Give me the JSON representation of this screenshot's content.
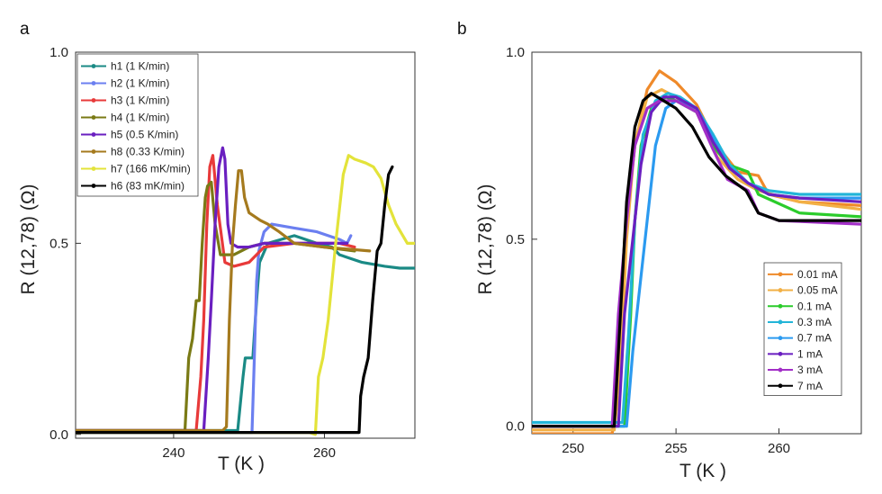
{
  "panels": [
    {
      "panel_label": "a",
      "xlabel": "T  (K )",
      "ylabel": "R (12,78) (Ω)",
      "xticks": [
        "240",
        "260"
      ],
      "yticks": [
        "0.0",
        "0.5",
        "1.0"
      ],
      "legend_position": "top-left"
    },
    {
      "panel_label": "b",
      "xlabel": "T  (K )",
      "ylabel": "R (12,78) (Ω)",
      "xticks": [
        "250",
        "255",
        "260"
      ],
      "yticks": [
        "0.0",
        "0.5",
        "1.0"
      ],
      "legend_position": "bottom-right"
    }
  ],
  "chart_data": [
    {
      "type": "line",
      "xlim": [
        227,
        272
      ],
      "ylim": [
        -0.01,
        1.0
      ],
      "xtick_values": [
        240,
        260
      ],
      "ytick_values": [
        0.0,
        0.5,
        1.0
      ],
      "grid": false,
      "series": [
        {
          "name": "h1 (1 K/min)",
          "color": "#1a8a85",
          "x": [
            227,
            240,
            248.5,
            249.2,
            249.5,
            250.5,
            251.0,
            251.4,
            252.5,
            256,
            259,
            261,
            262,
            265,
            268,
            270,
            272
          ],
          "y": [
            0.01,
            0.01,
            0.01,
            0.15,
            0.2,
            0.2,
            0.35,
            0.45,
            0.5,
            0.52,
            0.5,
            0.49,
            0.47,
            0.45,
            0.44,
            0.435,
            0.435
          ]
        },
        {
          "name": "h2 (1 K/min)",
          "color": "#6b7ff0",
          "x": [
            227,
            249,
            250.4,
            250.7,
            251.0,
            251.3,
            252,
            253,
            256,
            259,
            262,
            263,
            263.5
          ],
          "y": [
            0.005,
            0.005,
            0.005,
            0.2,
            0.4,
            0.48,
            0.53,
            0.55,
            0.54,
            0.53,
            0.51,
            0.5,
            0.52
          ]
        },
        {
          "name": "h3 (1 K/min)",
          "color": "#e83a3a",
          "x": [
            227,
            243,
            243.6,
            244.0,
            244.4,
            244.8,
            245.2,
            245.8,
            246.8,
            248,
            250,
            252,
            256,
            259,
            262,
            264
          ],
          "y": [
            0.01,
            0.01,
            0.15,
            0.3,
            0.55,
            0.7,
            0.73,
            0.6,
            0.45,
            0.44,
            0.45,
            0.49,
            0.5,
            0.5,
            0.5,
            0.49
          ]
        },
        {
          "name": "h4 (1 K/min)",
          "color": "#7a7a15",
          "x": [
            227,
            241.5,
            242,
            242.5,
            243,
            243.4,
            243.8,
            244.2,
            244.5,
            245,
            245.5,
            246.2,
            248,
            250,
            252,
            256,
            260,
            264
          ],
          "y": [
            0.01,
            0.01,
            0.2,
            0.25,
            0.35,
            0.35,
            0.5,
            0.62,
            0.65,
            0.66,
            0.55,
            0.47,
            0.47,
            0.49,
            0.5,
            0.5,
            0.49,
            0.48
          ]
        },
        {
          "name": "h5 (0.5 K/min)",
          "color": "#6a1fc0",
          "x": [
            227,
            244,
            244.6,
            245.0,
            245.5,
            246.0,
            246.5,
            246.8,
            247.2,
            247.6,
            248.5,
            250,
            252,
            256,
            260,
            263
          ],
          "y": [
            0.01,
            0.01,
            0.2,
            0.35,
            0.55,
            0.7,
            0.75,
            0.72,
            0.55,
            0.5,
            0.49,
            0.49,
            0.5,
            0.5,
            0.5,
            0.5
          ]
        },
        {
          "name": "h8 (0.33 K/min)",
          "color": "#a57a1e",
          "x": [
            227,
            246.5,
            247.0,
            247.4,
            247.8,
            248.2,
            248.6,
            249.0,
            249.4,
            250,
            251.5,
            252.5,
            254,
            256,
            260,
            266
          ],
          "y": [
            0.01,
            0.01,
            0.02,
            0.3,
            0.5,
            0.6,
            0.69,
            0.69,
            0.62,
            0.58,
            0.56,
            0.55,
            0.53,
            0.5,
            0.49,
            0.48
          ]
        },
        {
          "name": "h7 (166 mK/min)",
          "color": "#e3e33a",
          "x": [
            227,
            258,
            258.8,
            259.2,
            259.8,
            260.5,
            261.5,
            262.5,
            263.2,
            264,
            265.5,
            266.5,
            267.5,
            268.5,
            269.5,
            271,
            272
          ],
          "y": [
            0.005,
            0.005,
            0.0,
            0.15,
            0.2,
            0.3,
            0.5,
            0.68,
            0.73,
            0.72,
            0.71,
            0.7,
            0.67,
            0.6,
            0.55,
            0.5,
            0.5
          ]
        },
        {
          "name": "h6 (83 mK/min)",
          "color": "#000000",
          "x": [
            227,
            262,
            264.6,
            264.8,
            265.2,
            265.8,
            266.4,
            267.0,
            267.5,
            268.0,
            268.5,
            269.0
          ],
          "y": [
            0.005,
            0.005,
            0.005,
            0.1,
            0.15,
            0.2,
            0.35,
            0.48,
            0.5,
            0.6,
            0.68,
            0.7
          ]
        }
      ]
    },
    {
      "type": "line",
      "xlim": [
        248,
        264
      ],
      "ylim": [
        -0.02,
        1.0
      ],
      "xtick_values": [
        250,
        255,
        260
      ],
      "ytick_values": [
        0.0,
        0.5,
        1.0
      ],
      "grid": false,
      "series": [
        {
          "name": "0.01 mA",
          "color": "#ef8a2a",
          "x": [
            248,
            251.9,
            252.2,
            252.5,
            253.0,
            253.6,
            254.2,
            255.0,
            256.0,
            257.0,
            258.0,
            259.0,
            259.5,
            261,
            264
          ],
          "y": [
            -0.02,
            -0.02,
            0.1,
            0.5,
            0.75,
            0.9,
            0.95,
            0.92,
            0.86,
            0.75,
            0.68,
            0.67,
            0.62,
            0.6,
            0.59
          ]
        },
        {
          "name": "0.05 mA",
          "color": "#f2b045",
          "x": [
            248,
            252.0,
            252.3,
            252.6,
            253.0,
            253.6,
            254.3,
            255.0,
            256.0,
            257.0,
            258.0,
            259.0,
            261,
            264
          ],
          "y": [
            -0.01,
            -0.01,
            0.15,
            0.5,
            0.76,
            0.88,
            0.9,
            0.88,
            0.84,
            0.72,
            0.66,
            0.63,
            0.6,
            0.58
          ]
        },
        {
          "name": "0.1 mA",
          "color": "#2bcc2b",
          "x": [
            248,
            252.5,
            252.8,
            253.0,
            253.3,
            253.8,
            254.5,
            255.0,
            256.0,
            256.8,
            257.5,
            258.5,
            259.0,
            261,
            264
          ],
          "y": [
            0.0,
            0.0,
            0.3,
            0.55,
            0.75,
            0.85,
            0.88,
            0.87,
            0.84,
            0.75,
            0.7,
            0.68,
            0.62,
            0.57,
            0.56
          ]
        },
        {
          "name": "0.3 mA",
          "color": "#22b5d8",
          "x": [
            248,
            252.4,
            252.7,
            253.0,
            253.4,
            254.0,
            254.6,
            255.2,
            256.0,
            256.8,
            257.6,
            258.5,
            259.5,
            261,
            264
          ],
          "y": [
            0.01,
            0.01,
            0.25,
            0.55,
            0.78,
            0.87,
            0.89,
            0.88,
            0.85,
            0.78,
            0.7,
            0.65,
            0.63,
            0.62,
            0.62
          ]
        },
        {
          "name": "0.7 mA",
          "color": "#2b9af0",
          "x": [
            248,
            252.6,
            252.9,
            253.2,
            253.6,
            254.0,
            254.5,
            255.0,
            256.0,
            256.8,
            257.6,
            258.5,
            259.5,
            261,
            264
          ],
          "y": [
            0.0,
            0.0,
            0.2,
            0.35,
            0.55,
            0.75,
            0.85,
            0.87,
            0.85,
            0.77,
            0.69,
            0.65,
            0.62,
            0.61,
            0.61
          ]
        },
        {
          "name": "1 mA",
          "color": "#6a1fc0",
          "x": [
            248,
            252.2,
            252.5,
            252.9,
            253.3,
            253.8,
            254.4,
            255.0,
            256.0,
            256.8,
            257.6,
            258.5,
            259.5,
            261,
            264
          ],
          "y": [
            0.0,
            0.0,
            0.3,
            0.5,
            0.7,
            0.84,
            0.88,
            0.88,
            0.85,
            0.76,
            0.69,
            0.65,
            0.62,
            0.61,
            0.6
          ]
        },
        {
          "name": "3 mA",
          "color": "#a22ec7",
          "x": [
            248,
            251.9,
            252.2,
            252.6,
            253.0,
            253.6,
            254.2,
            255.0,
            256.0,
            256.8,
            257.5,
            258.5,
            259.0,
            260,
            264
          ],
          "y": [
            0.0,
            0.0,
            0.3,
            0.55,
            0.75,
            0.85,
            0.87,
            0.87,
            0.84,
            0.74,
            0.66,
            0.63,
            0.57,
            0.55,
            0.54
          ]
        },
        {
          "name": "7 mA",
          "color": "#000000",
          "x": [
            248,
            252.0,
            252.3,
            252.6,
            253.0,
            253.4,
            253.8,
            254.4,
            255.0,
            255.8,
            256.6,
            257.4,
            258.4,
            259.0,
            260,
            264
          ],
          "y": [
            0.0,
            0.0,
            0.3,
            0.6,
            0.8,
            0.87,
            0.89,
            0.87,
            0.85,
            0.8,
            0.72,
            0.67,
            0.63,
            0.57,
            0.55,
            0.55
          ]
        }
      ]
    }
  ]
}
